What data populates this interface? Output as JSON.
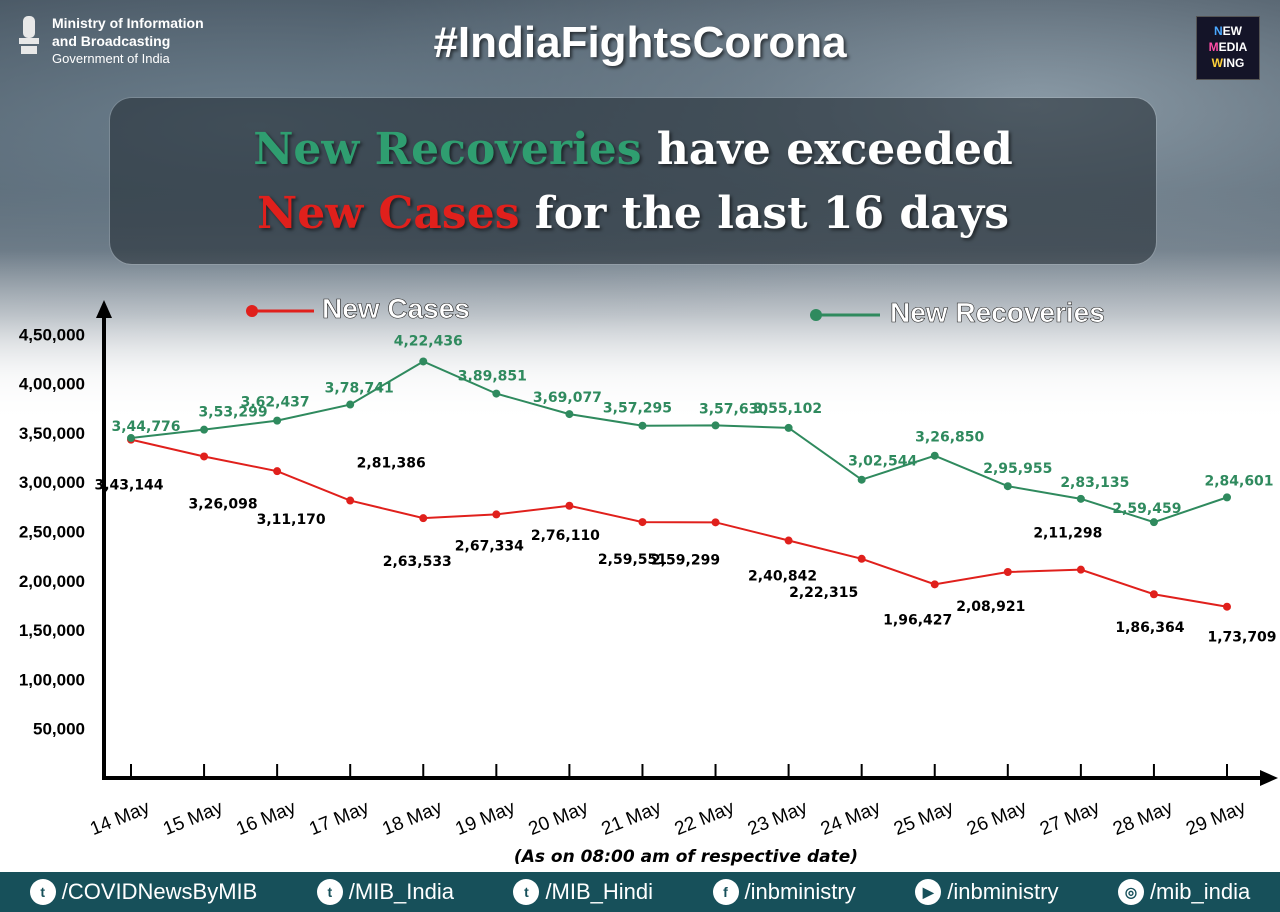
{
  "header": {
    "ministry_line1": "Ministry of Information",
    "ministry_line2": "and Broadcasting",
    "ministry_line3": "Government of India",
    "hashtag": "#IndiaFightsCorona",
    "logo_letters": [
      "N",
      "M",
      "W"
    ],
    "logo_line1": "EW",
    "logo_line2": "EDIA",
    "logo_line3": "ING"
  },
  "headline": {
    "green_part": "New Recoveries",
    "white_part1": " have exceeded",
    "red_part": "New Cases",
    "white_part2": " for the last 16 days"
  },
  "chart_data": {
    "type": "line",
    "categories": [
      "14 May",
      "15 May",
      "16 May",
      "17 May",
      "18 May",
      "19 May",
      "20 May",
      "21 May",
      "22 May",
      "23 May",
      "24 May",
      "25 May",
      "26 May",
      "27 May",
      "28 May",
      "29 May"
    ],
    "y_ticks": [
      50000,
      100000,
      150000,
      200000,
      250000,
      300000,
      350000,
      400000,
      450000
    ],
    "y_tick_labels": [
      "50,000",
      "1,00,000",
      "1,50,000",
      "2,00,000",
      "2,50,000",
      "3,00,000",
      "3,50,000",
      "4,00,000",
      "4,50,000"
    ],
    "ylim": [
      0,
      450000
    ],
    "series": [
      {
        "name": "New Cases",
        "color": "#e0201c",
        "values": [
          343144,
          326098,
          311170,
          281386,
          263533,
          267334,
          276110,
          259551,
          259299,
          240842,
          222315,
          196427,
          208921,
          211298,
          186364,
          173709
        ],
        "labels": [
          "3,43,144",
          "3,26,098",
          "3,11,170",
          "2,81,386",
          "2,63,533",
          "2,67,334",
          "2,76,110",
          "2,59,551",
          "2,59,299",
          "2,40,842",
          "2,22,315",
          "1,96,427",
          "2,08,921",
          "2,11,298",
          "1,86,364",
          "1,73,709"
        ]
      },
      {
        "name": "New Recoveries",
        "color": "#2f8a5e",
        "values": [
          344776,
          353299,
          362437,
          378741,
          422436,
          389851,
          369077,
          357295,
          357630,
          355102,
          302544,
          326850,
          295955,
          283135,
          259459,
          284601
        ],
        "labels": [
          "3,44,776",
          "3,53,299",
          "3,62,437",
          "3,78,741",
          "4,22,436",
          "3,89,851",
          "3,69,077",
          "3,57,295",
          "3,57,630",
          "3,55,102",
          "3,02,544",
          "3,26,850",
          "2,95,955",
          "2,83,135",
          "2,59,459",
          "2,84,601"
        ]
      }
    ],
    "note": "(As on 08:00 am of respective date)",
    "legend_placement": "top"
  },
  "footer": {
    "items": [
      {
        "icon": "twitter-icon",
        "glyph": "t",
        "label": "/COVIDNewsByMIB"
      },
      {
        "icon": "twitter-icon",
        "glyph": "t",
        "label": "/MIB_India"
      },
      {
        "icon": "twitter-icon",
        "glyph": "t",
        "label": "/MIB_Hindi"
      },
      {
        "icon": "facebook-icon",
        "glyph": "f",
        "label": "/inbministry"
      },
      {
        "icon": "youtube-icon",
        "glyph": "▶",
        "label": "/inbministry"
      },
      {
        "icon": "instagram-icon",
        "glyph": "◎",
        "label": "/mib_india"
      }
    ]
  }
}
